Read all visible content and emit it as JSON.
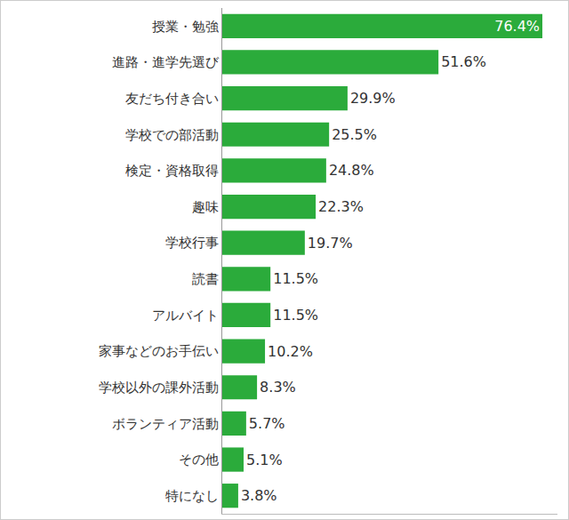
{
  "chart_data": {
    "type": "bar",
    "orientation": "horizontal",
    "categories": [
      "授業・勉強",
      "進路・進学先選び",
      "友だち付き合い",
      "学校での部活動",
      "検定・資格取得",
      "趣味",
      "学校行事",
      "読書",
      "アルバイト",
      "家事などのお手伝い",
      "学校以外の課外活動",
      "ボランティア活動",
      "その他",
      "特になし"
    ],
    "values": [
      76.4,
      51.6,
      29.9,
      25.5,
      24.8,
      22.3,
      19.7,
      11.5,
      11.5,
      10.2,
      8.3,
      5.7,
      5.1,
      3.8
    ],
    "value_labels": [
      "76.4%",
      "51.6%",
      "29.9%",
      "25.5%",
      "24.8%",
      "22.3%",
      "19.7%",
      "11.5%",
      "11.5%",
      "10.2%",
      "8.3%",
      "5.7%",
      "5.1%",
      "3.8%"
    ],
    "color": "#2bab3b",
    "xlim": [
      0,
      80
    ],
    "xticks": [],
    "data_labels": true,
    "tick_labels": "y",
    "grid": false
  }
}
